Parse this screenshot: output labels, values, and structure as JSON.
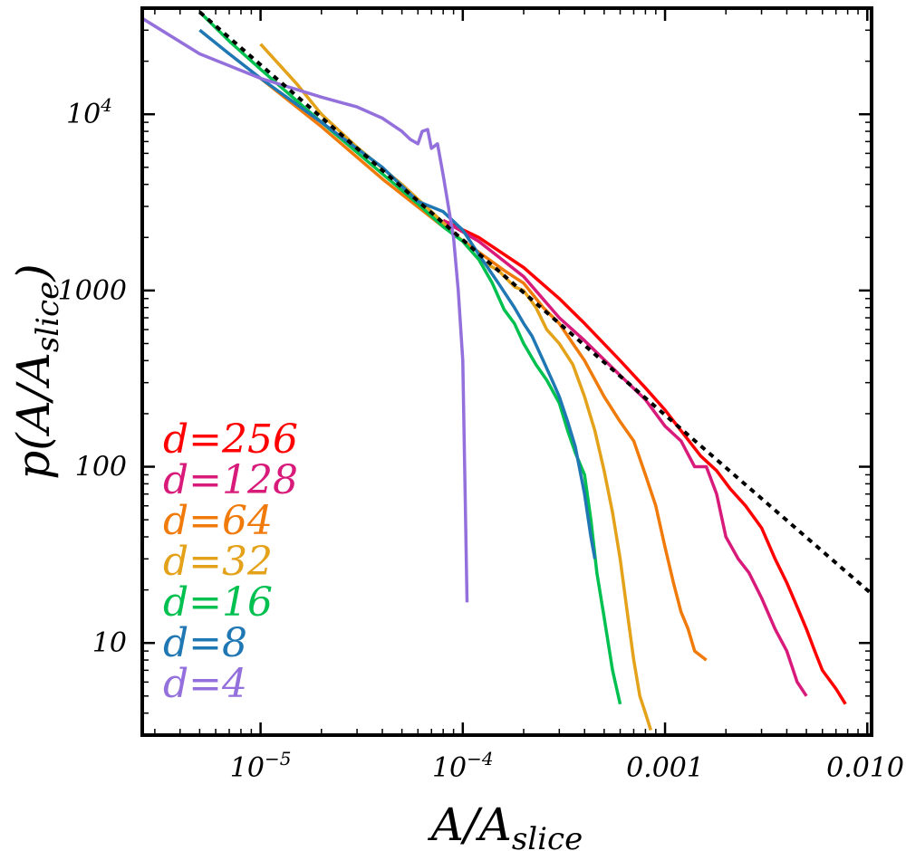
{
  "chart_data": {
    "type": "line",
    "xscale": "log",
    "yscale": "log",
    "xlim": [
      2.6e-06,
      0.0105
    ],
    "ylim": [
      3.0,
      40000
    ],
    "xlabel": "A/A_slice",
    "ylabel": "p(A/A_slice)",
    "xlabel_parts": {
      "main": "A/A",
      "sub": "slice"
    },
    "ylabel_parts": {
      "pre": "p(A/A",
      "sub": "slice",
      "post": ")"
    },
    "x_ticks": [
      {
        "value": 1e-05,
        "label": "10",
        "sup": "−5"
      },
      {
        "value": 0.0001,
        "label": "10",
        "sup": "−4"
      },
      {
        "value": 0.001,
        "label": "0.001",
        "sup": ""
      },
      {
        "value": 0.01,
        "label": "0.010",
        "sup": ""
      }
    ],
    "y_ticks": [
      {
        "value": 10,
        "label": "10",
        "sup": ""
      },
      {
        "value": 100,
        "label": "100",
        "sup": ""
      },
      {
        "value": 1000,
        "label": "1000",
        "sup": ""
      },
      {
        "value": 10000,
        "label": "10",
        "sup": "4"
      }
    ],
    "legend_position": "bottom-left",
    "reference_line": {
      "style": "dotted",
      "color": "#000000",
      "x": [
        5e-06,
        0.0105
      ],
      "y": [
        38000,
        19
      ]
    },
    "series": [
      {
        "name": "d=4",
        "color": "#9370db",
        "x": [
          2.6e-06,
          5e-06,
          1e-05,
          2e-05,
          3e-05,
          4e-05,
          5e-05,
          5.5e-05,
          6e-05,
          6.3e-05,
          6.7e-05,
          7e-05,
          7.5e-05,
          8e-05,
          9e-05,
          9.5e-05,
          0.0001,
          0.000105
        ],
        "y": [
          35000,
          22000,
          16000,
          12500,
          11000,
          9500,
          8000,
          7200,
          6800,
          8000,
          8200,
          6400,
          6800,
          4500,
          2000,
          1000,
          400,
          17
        ]
      },
      {
        "name": "d=8",
        "color": "#1f77b4",
        "x": [
          5e-06,
          7e-06,
          1e-05,
          2e-05,
          4e-05,
          6e-05,
          8e-05,
          0.0001,
          0.00012,
          0.00015,
          0.00018,
          0.0002,
          0.00022,
          0.00025,
          0.00028,
          0.0003,
          0.00033,
          0.00036,
          0.0004,
          0.00043,
          0.00045
        ],
        "y": [
          30000,
          22000,
          16000,
          9000,
          5000,
          3200,
          2800,
          2200,
          1600,
          1100,
          800,
          650,
          550,
          400,
          300,
          250,
          180,
          130,
          70,
          40,
          30
        ]
      },
      {
        "name": "d=16",
        "color": "#00c050",
        "x": [
          5e-06,
          7e-06,
          1e-05,
          2e-05,
          4e-05,
          6e-05,
          8e-05,
          0.0001,
          0.00012,
          0.00014,
          0.00016,
          0.00018,
          0.0002,
          0.00023,
          0.00026,
          0.0003,
          0.00033,
          0.00036,
          0.0004,
          0.00043,
          0.00046,
          0.0005,
          0.00055,
          0.0006
        ],
        "y": [
          38000,
          26000,
          18000,
          9000,
          4600,
          3100,
          2300,
          1900,
          1500,
          1100,
          780,
          650,
          500,
          380,
          310,
          230,
          160,
          120,
          90,
          50,
          25,
          14,
          7,
          4.5
        ]
      },
      {
        "name": "d=32",
        "color": "#e3a21a",
        "x": [
          1e-05,
          1.5e-05,
          2e-05,
          3e-05,
          5e-05,
          7e-05,
          0.0001,
          0.00012,
          0.00015,
          0.00018,
          0.0002,
          0.00023,
          0.00026,
          0.0003,
          0.00035,
          0.0004,
          0.00045,
          0.0005,
          0.00055,
          0.0006,
          0.00065,
          0.0007,
          0.00075,
          0.0008,
          0.00085
        ],
        "y": [
          25000,
          15000,
          10000,
          6500,
          4000,
          2800,
          1900,
          1500,
          1300,
          1050,
          1000,
          800,
          600,
          500,
          380,
          250,
          160,
          95,
          55,
          30,
          15,
          8,
          5,
          4,
          3.2
        ]
      },
      {
        "name": "d=64",
        "color": "#f07a0a",
        "x": [
          1e-05,
          2e-05,
          4e-05,
          8e-05,
          0.00012,
          0.00016,
          0.0002,
          0.00025,
          0.0003,
          0.00035,
          0.0004,
          0.0005,
          0.0006,
          0.0007,
          0.0008,
          0.0009,
          0.001,
          0.0011,
          0.0012,
          0.0013,
          0.0014,
          0.0016
        ],
        "y": [
          16000,
          8500,
          4300,
          2300,
          1650,
          1300,
          1100,
          800,
          650,
          500,
          400,
          250,
          180,
          140,
          90,
          60,
          35,
          22,
          15,
          12,
          9,
          8
        ]
      },
      {
        "name": "d=128",
        "color": "#d81b7a",
        "x": [
          8e-05,
          0.00012,
          0.0002,
          0.0003,
          0.0004,
          0.0006,
          0.0008,
          0.001,
          0.0012,
          0.0014,
          0.0016,
          0.0018,
          0.002,
          0.0023,
          0.0026,
          0.003,
          0.0035,
          0.004,
          0.0045,
          0.005
        ],
        "y": [
          2500,
          1900,
          1200,
          700,
          520,
          330,
          240,
          170,
          140,
          100,
          100,
          70,
          40,
          30,
          25,
          18,
          12,
          9,
          6,
          5
        ]
      },
      {
        "name": "d=256",
        "color": "#ff0000",
        "x": [
          8e-05,
          0.00012,
          0.0002,
          0.0003,
          0.0004,
          0.0006,
          0.0008,
          0.001,
          0.0012,
          0.0015,
          0.0018,
          0.0021,
          0.0025,
          0.003,
          0.0035,
          0.004,
          0.0045,
          0.005,
          0.0055,
          0.006,
          0.007,
          0.0078
        ],
        "y": [
          2500,
          2000,
          1350,
          900,
          650,
          400,
          280,
          210,
          160,
          115,
          95,
          75,
          60,
          45,
          30,
          22,
          16,
          12,
          9,
          7,
          5.5,
          4.5
        ]
      }
    ],
    "legend": [
      {
        "label": "d=256",
        "color": "#ff0000"
      },
      {
        "label": "d=128",
        "color": "#d81b7a"
      },
      {
        "label": "d=64",
        "color": "#f07a0a"
      },
      {
        "label": "d=32",
        "color": "#e3a21a"
      },
      {
        "label": "d=16",
        "color": "#00c050"
      },
      {
        "label": "d=8",
        "color": "#1f77b4"
      },
      {
        "label": "d=4",
        "color": "#9370db"
      }
    ]
  }
}
